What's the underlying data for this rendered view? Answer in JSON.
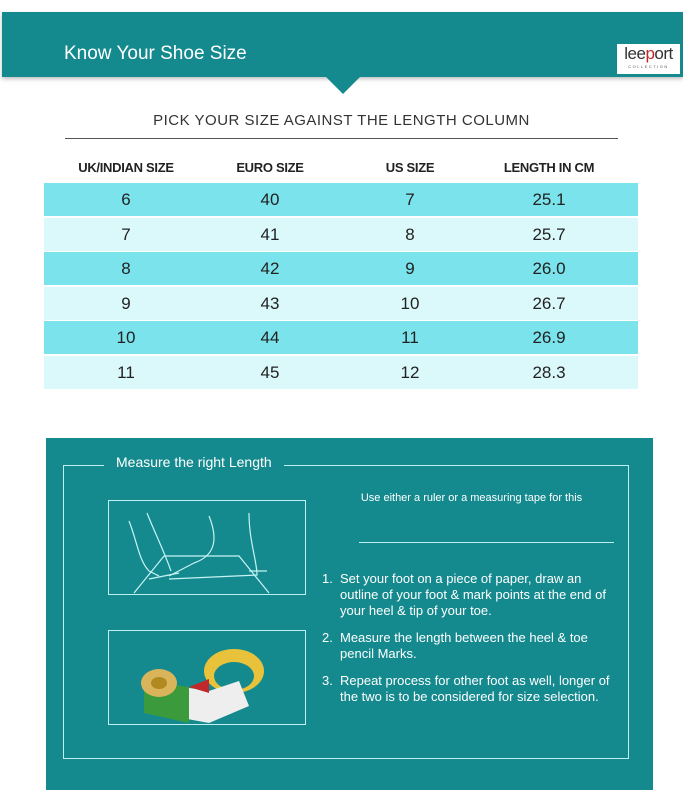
{
  "header": {
    "title": "Know Your Shoe Size",
    "logo": {
      "text": "leeport",
      "subtext": "COLLECTION"
    }
  },
  "subheading": "PICK YOUR SIZE AGAINST THE LENGTH COLUMN",
  "table": {
    "columns": [
      "UK/INDIAN SIZE",
      "EURO SIZE",
      "US SIZE",
      "LENGTH IN CM"
    ],
    "rows": [
      [
        "6",
        "40",
        "7",
        "25.1"
      ],
      [
        "7",
        "41",
        "8",
        "25.7"
      ],
      [
        "8",
        "42",
        "9",
        "26.0"
      ],
      [
        "9",
        "43",
        "10",
        "26.7"
      ],
      [
        "10",
        "44",
        "11",
        "26.9"
      ],
      [
        "11",
        "45",
        "12",
        "28.3"
      ]
    ]
  },
  "colors": {
    "header": "#148a8f",
    "row_dark": "#7be3ec",
    "row_light": "#dbf9fb"
  },
  "measure": {
    "title": "Measure the right Length",
    "note": "Use either a ruler or a measuring tape for this",
    "steps": [
      {
        "n": "1.",
        "text": "Set your foot on a piece of paper, draw an outline of your foot & mark points at the end of your heel & tip of your toe."
      },
      {
        "n": "2.",
        "text": "Measure the length between the heel & toe pencil Marks."
      },
      {
        "n": "3.",
        "text": "Repeat process for other foot as well, longer of the two is to be considered for size selection."
      }
    ]
  }
}
